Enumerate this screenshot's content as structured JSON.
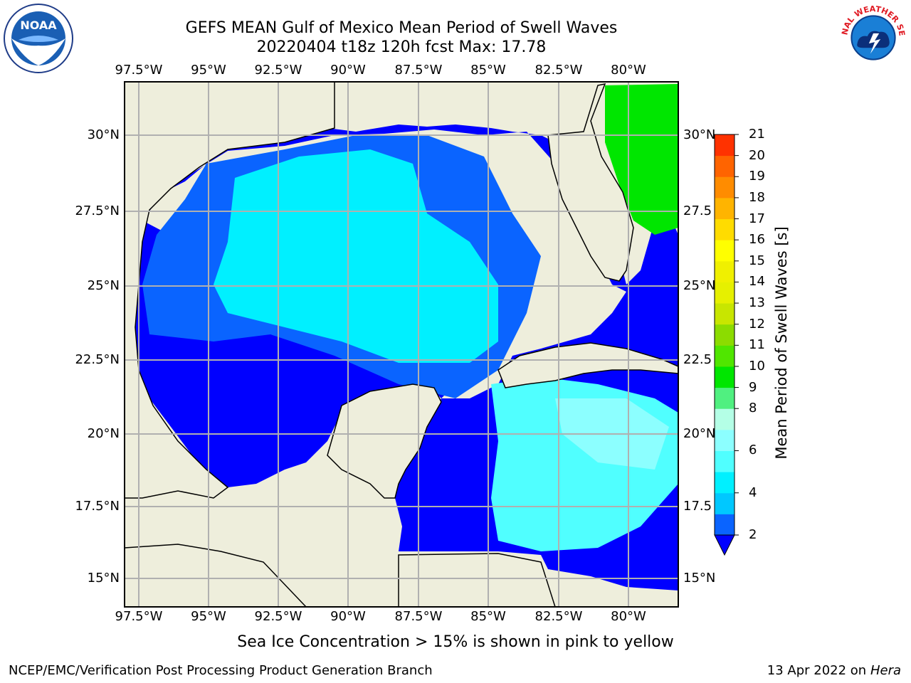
{
  "title": {
    "line1": "GEFS MEAN Gulf of Mexico Mean Period of Swell Waves",
    "line2": "20220404 t18z 120h fcst   Max: 17.78"
  },
  "chart_data": {
    "type": "map",
    "variable": "Mean Period of Swell Waves [s]",
    "max_value": 17.78,
    "lon_ticks": [
      "97.5°W",
      "95°W",
      "92.5°W",
      "90°W",
      "87.5°W",
      "85°W",
      "82.5°W",
      "80°W"
    ],
    "lat_ticks_left": [
      "30°N",
      "27.5°N",
      "25°N",
      "22.5°N",
      "20°N",
      "17.5°N",
      "15°N"
    ],
    "lat_ticks_right": [
      "30°N",
      "27.5",
      "25°N",
      "22.5",
      "20°N",
      "17.5",
      "15°N"
    ],
    "colorbar": {
      "levels": [
        2,
        3,
        4,
        5,
        6,
        7,
        8,
        9,
        10,
        11,
        12,
        13,
        14,
        15,
        16,
        17,
        18,
        19,
        20,
        21
      ],
      "colors": [
        "#0a64ff",
        "#00c8ff",
        "#00f0ff",
        "#50ffff",
        "#8cffff",
        "#b4ffe6",
        "#50f080",
        "#00e600",
        "#50e600",
        "#8cdc00",
        "#c8e600",
        "#e6f000",
        "#f0f000",
        "#ffff00",
        "#ffdc00",
        "#ffb400",
        "#ff8c00",
        "#ff6400",
        "#ff3200"
      ],
      "tick_labels": [
        "2",
        "4",
        "6",
        "8",
        "9",
        "10",
        "11",
        "12",
        "13",
        "14",
        "15",
        "16",
        "17",
        "18",
        "19",
        "20",
        "21"
      ],
      "under_color": "#0000ff",
      "label": "Mean Period of Swell Waves [s]"
    },
    "land_color": "#eeeedc",
    "grid": true
  },
  "footnote": "Sea Ice Concentration > 15% is shown in pink to yellow",
  "credit": "NCEP/EMC/Verification Post Processing Product Generation Branch",
  "date_text": "13 Apr 2022 on ",
  "host": "Hera",
  "logos": {
    "noaa": "NOAA",
    "nws": "NATIONAL WEATHER SERVICE"
  }
}
